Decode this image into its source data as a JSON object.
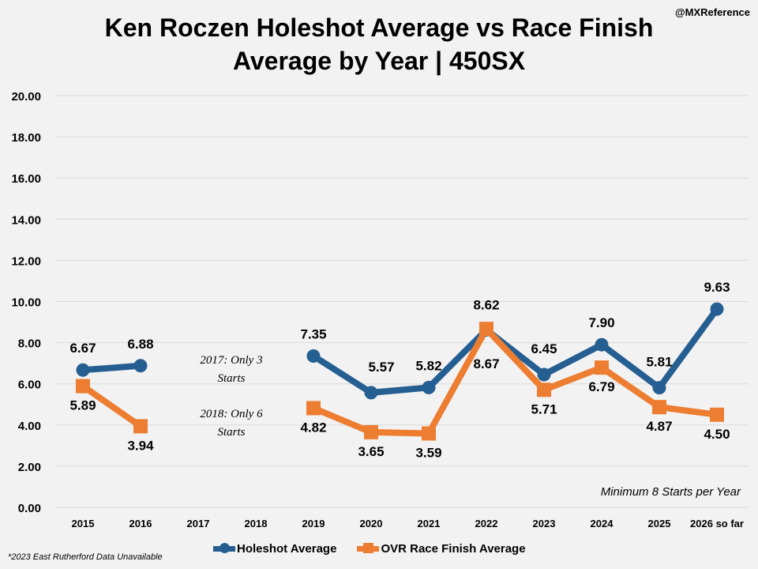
{
  "chart_data": {
    "type": "line",
    "title_line1": "Ken Roczen Holeshot Average vs Race Finish",
    "title_line2": "Average by Year | 450SX",
    "credit": "@MXReference",
    "categories": [
      "2015",
      "2016",
      "2017",
      "2018",
      "2019",
      "2020",
      "2021",
      "2022",
      "2023",
      "2024",
      "2025",
      "2026 so far"
    ],
    "ylim": [
      0,
      20
    ],
    "yticks": [
      "0.00",
      "2.00",
      "4.00",
      "6.00",
      "8.00",
      "10.00",
      "12.00",
      "14.00",
      "16.00",
      "18.00",
      "20.00"
    ],
    "grid": true,
    "legend_position": "bottom",
    "series": [
      {
        "name": "Holeshot Average",
        "color": "#255e91",
        "marker": "circle",
        "values": [
          6.67,
          6.88,
          null,
          null,
          7.35,
          5.57,
          5.82,
          8.62,
          6.45,
          7.9,
          5.81,
          9.63
        ],
        "labels": [
          "6.67",
          "6.88",
          null,
          null,
          "7.35",
          "5.57",
          "5.82",
          "8.62",
          "6.45",
          "7.90",
          "5.81",
          "9.63"
        ]
      },
      {
        "name": "OVR Race Finish Average",
        "color": "#ed7d31",
        "marker": "square",
        "values": [
          5.89,
          3.94,
          null,
          null,
          4.82,
          3.65,
          3.59,
          8.67,
          5.71,
          6.79,
          4.87,
          4.5
        ],
        "labels": [
          "5.89",
          "3.94",
          null,
          null,
          "4.82",
          "3.65",
          "3.59",
          "8.67",
          "5.71",
          "6.79",
          "4.87",
          "4.50"
        ]
      }
    ],
    "annotations": {
      "note_2017_a": "2017: Only 3",
      "note_2017_b": "Starts",
      "note_2018_a": "2018: Only 6",
      "note_2018_b": "Starts",
      "minimum": "Minimum 8 Starts per Year"
    },
    "footnote": "*2023 East Rutherford Data Unavailable"
  }
}
